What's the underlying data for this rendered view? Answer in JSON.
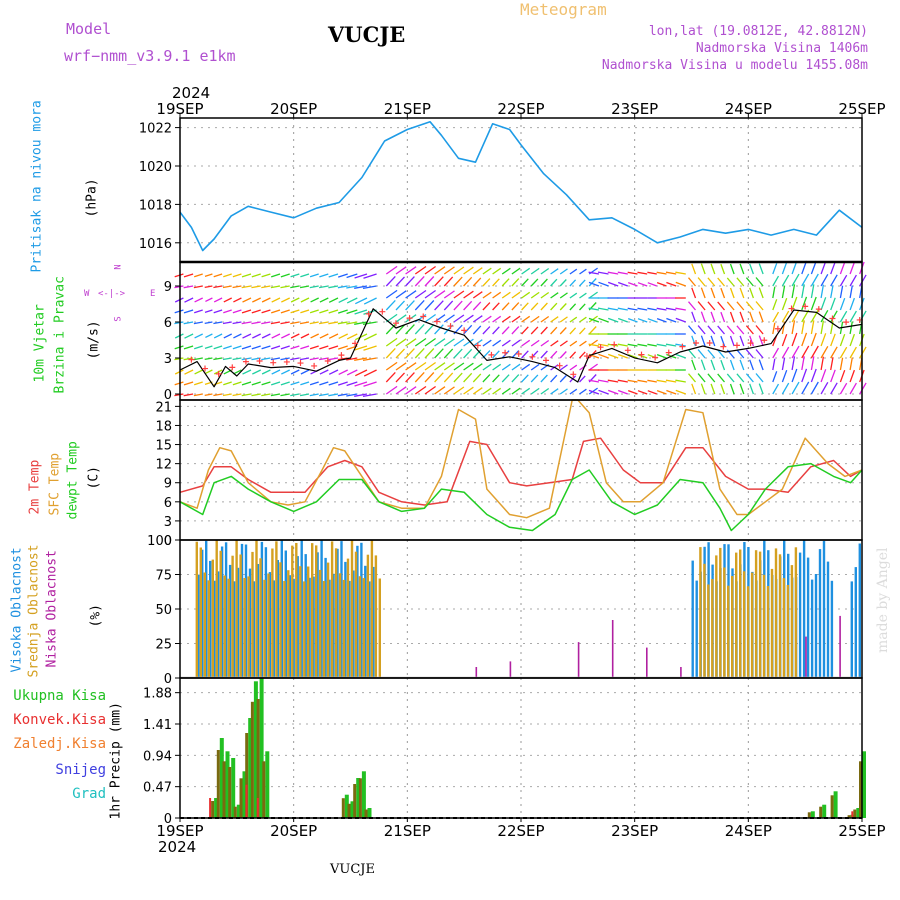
{
  "header": {
    "model_label": "Model",
    "model_name": "wrf−nmm_v3.9.1  e1km",
    "station": "VUCJE",
    "meteogram": "Meteogram",
    "lonlat": "lon,lat (19.0812E, 42.8812N)",
    "elevation": "Nadmorska Visina 1406m",
    "model_elevation": "Nadmorska Visina u modelu 1455.08m",
    "year": "2024",
    "footer_station": "VUCJE",
    "credit": "made by Angel"
  },
  "colors": {
    "pressure": "#1e9be6",
    "temp2m": "#e84040",
    "sfc_temp": "#e0a030",
    "dewpoint": "#22cc22",
    "high_cloud": "#1e90e0",
    "mid_cloud": "#d4a020",
    "low_cloud": "#b020a0",
    "total_precip": "#22c022",
    "conv_precip": "#e83030",
    "frozen_precip": "#f08030",
    "snow": "#4040e0",
    "graupel": "#20c0c0",
    "precip_olive": "#7a6a10",
    "title_purple": "#b050d0",
    "meteogram_orange": "#f0c070"
  },
  "time_axis": {
    "top_labels": [
      "19SEP",
      "20SEP",
      "21SEP",
      "22SEP",
      "23SEP",
      "24SEP",
      "25SEP"
    ],
    "bottom_labels": [
      "19SEP",
      "20SEP",
      "21SEP",
      "22SEP",
      "23SEP",
      "24SEP",
      "25SEP"
    ]
  },
  "panel_labels": {
    "pressure": {
      "name": "Pritisak na nivou mora",
      "unit": "(hPa)"
    },
    "wind": {
      "name1": "10m Vjetar",
      "name2": "Brzina i Pravac",
      "unit": "(m/s)",
      "compass_n": "N",
      "compass_w": "W",
      "compass_e": "E",
      "compass_s": "S"
    },
    "temp": {
      "t2m": "2m Temp",
      "sfc": "SFC Temp",
      "dew": "dewpt Temp",
      "unit": "(C)"
    },
    "cloud": {
      "high": "Visoka Oblacnost",
      "mid": "Srednja Oblacnost",
      "low": "Niska Oblacnost",
      "unit": "(%)"
    },
    "precip": {
      "total": "Ukupna Kisa",
      "conv": "Konvek.Kisa",
      "frozen": "Zaledj.Kisa",
      "snow": "Snijeg",
      "graupel": "Grad",
      "unit": "1hr Precip (mm)"
    }
  },
  "chart_data": [
    {
      "type": "line",
      "title": "",
      "ylabel": "(hPa)",
      "ylim": [
        1015,
        1022.5
      ],
      "yticks": [
        "1016",
        "1018",
        "1020",
        "1022"
      ],
      "x_range_days": [
        0,
        6
      ],
      "series": [
        {
          "name": "Pritisak na nivou mora",
          "x": [
            0,
            0.1,
            0.2,
            0.3,
            0.45,
            0.6,
            0.8,
            1.0,
            1.2,
            1.4,
            1.6,
            1.8,
            2.0,
            2.2,
            2.3,
            2.45,
            2.6,
            2.75,
            2.9,
            3.0,
            3.2,
            3.4,
            3.6,
            3.8,
            4.0,
            4.2,
            4.4,
            4.6,
            4.8,
            5.0,
            5.2,
            5.4,
            5.6,
            5.8,
            6.0
          ],
          "values": [
            1017.6,
            1016.8,
            1015.6,
            1016.2,
            1017.4,
            1017.9,
            1017.6,
            1017.3,
            1017.8,
            1018.1,
            1019.4,
            1021.3,
            1021.9,
            1022.3,
            1021.6,
            1020.4,
            1020.2,
            1022.2,
            1021.9,
            1021.1,
            1019.6,
            1018.5,
            1017.2,
            1017.3,
            1016.7,
            1016.0,
            1016.3,
            1016.7,
            1016.5,
            1016.7,
            1016.4,
            1016.7,
            1016.4,
            1017.7,
            1016.8
          ]
        }
      ]
    },
    {
      "type": "line",
      "title": "",
      "ylabel": "(m/s)",
      "ylim": [
        -0.5,
        11
      ],
      "yticks": [
        "0",
        "3",
        "6",
        "9"
      ],
      "x_range_days": [
        0,
        6
      ],
      "series": [
        {
          "name": "10m Vjetar",
          "x": [
            0,
            0.15,
            0.3,
            0.4,
            0.5,
            0.6,
            0.8,
            1.0,
            1.2,
            1.4,
            1.5,
            1.7,
            1.9,
            2.1,
            2.3,
            2.5,
            2.7,
            2.9,
            3.1,
            3.3,
            3.5,
            3.6,
            3.8,
            4.0,
            4.2,
            4.4,
            4.6,
            4.8,
            5.0,
            5.2,
            5.4,
            5.6,
            5.8,
            6.0
          ],
          "values": [
            2.0,
            2.7,
            0.6,
            2.3,
            1.5,
            2.5,
            2.2,
            2.3,
            1.9,
            2.8,
            3.0,
            7.1,
            5.5,
            6.2,
            5.5,
            4.9,
            2.8,
            3.1,
            2.7,
            2.2,
            1.0,
            3.2,
            3.8,
            3.0,
            2.6,
            3.5,
            4.0,
            3.5,
            3.8,
            4.2,
            7.0,
            6.8,
            5.5,
            5.8
          ]
        }
      ]
    },
    {
      "type": "line",
      "title": "",
      "ylabel": "(C)",
      "ylim": [
        0,
        22
      ],
      "yticks": [
        "0",
        "3",
        "6",
        "9",
        "12",
        "15",
        "18",
        "21"
      ],
      "x_range_days": [
        0,
        6
      ],
      "series": [
        {
          "name": "2m Temp",
          "x": [
            0,
            0.2,
            0.3,
            0.45,
            0.6,
            0.8,
            0.95,
            1.1,
            1.3,
            1.45,
            1.6,
            1.75,
            1.95,
            2.15,
            2.35,
            2.55,
            2.7,
            2.9,
            3.05,
            3.25,
            3.45,
            3.55,
            3.7,
            3.9,
            4.05,
            4.25,
            4.45,
            4.6,
            4.8,
            5.0,
            5.15,
            5.35,
            5.55,
            5.75,
            5.9,
            6.0
          ],
          "values": [
            7.5,
            8.5,
            11.5,
            11.5,
            9.5,
            7.5,
            7.5,
            7.5,
            11.5,
            12.5,
            11.5,
            7.5,
            6,
            5.5,
            6,
            15.5,
            15,
            9,
            8.5,
            9,
            9.5,
            15.5,
            16,
            11,
            9,
            9,
            14.5,
            14.5,
            10,
            8,
            8,
            7.5,
            11.5,
            12.5,
            10,
            11
          ]
        },
        {
          "name": "SFC Temp",
          "x": [
            0,
            0.15,
            0.25,
            0.35,
            0.45,
            0.6,
            0.8,
            0.95,
            1.1,
            1.25,
            1.35,
            1.45,
            1.6,
            1.75,
            1.95,
            2.15,
            2.3,
            2.45,
            2.6,
            2.7,
            2.9,
            3.05,
            3.25,
            3.45,
            3.5,
            3.6,
            3.75,
            3.9,
            4.05,
            4.25,
            4.45,
            4.6,
            4.75,
            4.9,
            5.0,
            5.15,
            5.3,
            5.5,
            5.7,
            5.85,
            6.0
          ],
          "values": [
            6,
            5,
            11,
            14.5,
            14,
            9,
            6,
            5.5,
            6,
            11,
            14.5,
            14,
            10,
            6,
            5,
            5,
            10,
            20.5,
            19,
            8,
            4,
            3.5,
            5,
            22,
            22,
            20,
            9,
            6,
            6,
            9,
            20.5,
            20,
            8,
            4,
            4,
            6,
            8,
            16,
            12,
            10,
            11
          ]
        },
        {
          "name": "dewpt Temp",
          "x": [
            0,
            0.2,
            0.3,
            0.45,
            0.6,
            0.8,
            1.0,
            1.2,
            1.4,
            1.6,
            1.75,
            1.95,
            2.15,
            2.3,
            2.5,
            2.7,
            2.9,
            3.1,
            3.3,
            3.45,
            3.6,
            3.8,
            4.0,
            4.2,
            4.4,
            4.6,
            4.75,
            4.85,
            5.0,
            5.15,
            5.35,
            5.55,
            5.75,
            5.9,
            6.0
          ],
          "values": [
            6,
            4,
            9,
            10,
            8,
            6,
            4.5,
            6,
            9.5,
            9.5,
            6,
            4.5,
            5,
            8,
            7.5,
            4,
            2,
            1.5,
            4,
            9.5,
            11,
            6,
            4,
            5.5,
            9.5,
            9,
            5,
            1.5,
            4,
            8,
            11.5,
            12,
            10,
            9,
            11
          ]
        }
      ]
    },
    {
      "type": "bar",
      "title": "",
      "ylabel": "(%)",
      "ylim": [
        0,
        100
      ],
      "yticks": [
        "0",
        "25",
        "50",
        "75",
        "100"
      ],
      "x_range_days": [
        0,
        6
      ],
      "series": [
        {
          "name": "Visoka Oblacnost",
          "segments": [
            [
              0.15,
              1.7,
              100
            ],
            [
              4.5,
              5.75,
              100
            ],
            [
              5.9,
              6.0,
              100
            ]
          ]
        },
        {
          "name": "Srednja Oblacnost",
          "segments": [
            [
              0.12,
              1.75,
              100
            ],
            [
              4.55,
              5.4,
              95
            ]
          ]
        },
        {
          "name": "Niska Oblacnost",
          "spikes": [
            [
              2.6,
              8
            ],
            [
              2.9,
              12
            ],
            [
              3.5,
              26
            ],
            [
              3.8,
              42
            ],
            [
              4.1,
              22
            ],
            [
              4.4,
              8
            ],
            [
              5.5,
              30
            ],
            [
              5.8,
              45
            ]
          ]
        }
      ]
    },
    {
      "type": "bar",
      "title": "",
      "ylabel": "1hr Precip (mm)",
      "ylim": [
        0,
        2.1
      ],
      "yticks": [
        "0",
        "0.47",
        "0.94",
        "1.41",
        "1.88"
      ],
      "x_range_days": [
        0,
        6
      ],
      "series": [
        {
          "name": "Ukupna Kisa",
          "x": [
            0.3,
            0.35,
            0.4,
            0.45,
            0.5,
            0.55,
            0.6,
            0.65,
            0.7,
            0.75,
            1.45,
            1.5,
            1.55,
            1.6,
            1.65,
            5.55,
            5.65,
            5.75,
            5.9,
            5.95,
            6.0
          ],
          "values": [
            0.3,
            1.2,
            1.0,
            0.9,
            0.2,
            0.7,
            1.5,
            2.05,
            2.1,
            1.0,
            0.35,
            0.25,
            0.6,
            0.7,
            0.15,
            0.1,
            0.2,
            0.4,
            0.05,
            0.15,
            1.0
          ]
        },
        {
          "name": "Konvek.Kisa",
          "x": [
            0.3,
            0.62,
            0.72,
            5.95
          ],
          "values": [
            0.3,
            0.5,
            0.3,
            0.1
          ]
        }
      ]
    }
  ]
}
